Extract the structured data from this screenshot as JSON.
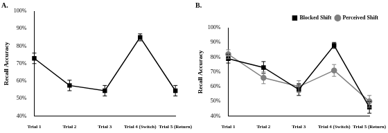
{
  "chart_data": [
    {
      "type": "line",
      "title": "A.",
      "y_label": "Recall Accuracy",
      "categories": [
        "Trial 1",
        "Trial 2",
        "Trial 3",
        "Trial 4 (Switch)",
        "Trial 5 (Return)"
      ],
      "values": [
        73,
        57.5,
        54.5,
        85,
        54.5
      ],
      "errors": [
        3,
        3,
        3,
        2,
        3
      ],
      "color": "#000000",
      "marker": "square",
      "ylim": [
        40,
        100
      ],
      "yticks": [
        {
          "value": 40,
          "label": "40%"
        },
        {
          "value": 50,
          "label": "50%"
        },
        {
          "value": 60,
          "label": "60%"
        },
        {
          "value": 70,
          "label": "70%"
        },
        {
          "value": 80,
          "label": "80%"
        },
        {
          "value": 90,
          "label": "90%"
        },
        {
          "value": 100,
          "label": "100%"
        }
      ],
      "grid": false
    },
    {
      "type": "line",
      "title": "B.",
      "y_label": "Recall Accuracy",
      "categories": [
        "Trial 1",
        "Trial 2",
        "Trial 3",
        "Trial 4 (Switch)",
        "Trial 5 (Return)"
      ],
      "series": [
        {
          "name": "Blocked Shift",
          "color": "#000000",
          "marker": "square",
          "values": [
            79,
            73,
            58,
            88,
            46
          ],
          "errors": [
            3,
            4,
            4,
            2,
            4
          ]
        },
        {
          "name": "Perceived Shift",
          "color": "#808080",
          "marker": "circle",
          "values": [
            82,
            66,
            60,
            71,
            50
          ],
          "errors": [
            3,
            4,
            4,
            4,
            4
          ]
        }
      ],
      "ylim": [
        40,
        100
      ],
      "yticks": [
        {
          "value": 40,
          "label": "40%"
        },
        {
          "value": 50,
          "label": "50%"
        },
        {
          "value": 60,
          "label": "60%"
        },
        {
          "value": 70,
          "label": "70%"
        },
        {
          "value": 80,
          "label": "80%"
        },
        {
          "value": 90,
          "label": "90%"
        },
        {
          "value": 100,
          "label": "100%"
        }
      ],
      "grid": false,
      "legend": "top-right"
    }
  ]
}
